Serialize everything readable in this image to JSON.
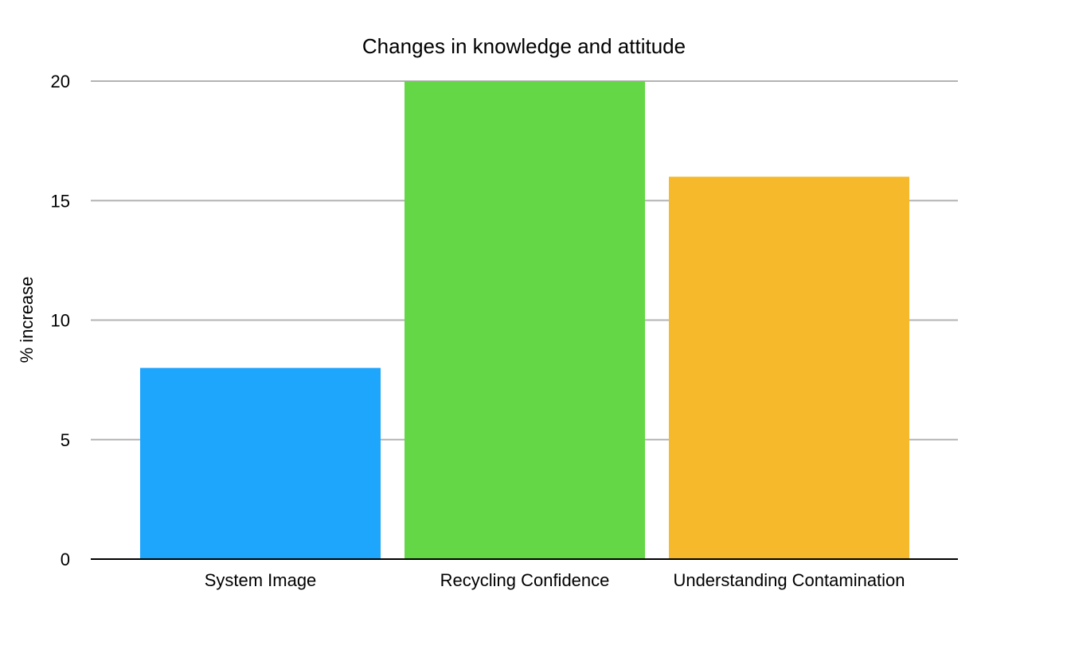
{
  "chart_data": {
    "type": "bar",
    "title": "Changes in knowledge and attitude",
    "xlabel": "",
    "ylabel": "% increase",
    "categories": [
      "System Image",
      "Recycling Confidence",
      "Understanding Contamination"
    ],
    "values": [
      8,
      20,
      16
    ],
    "colors": [
      "#1ea5fc",
      "#63d745",
      "#f6b92b"
    ],
    "ylim": [
      0,
      20
    ],
    "yticks": [
      0,
      5,
      10,
      15,
      20
    ],
    "grid": true,
    "legend": "none"
  }
}
